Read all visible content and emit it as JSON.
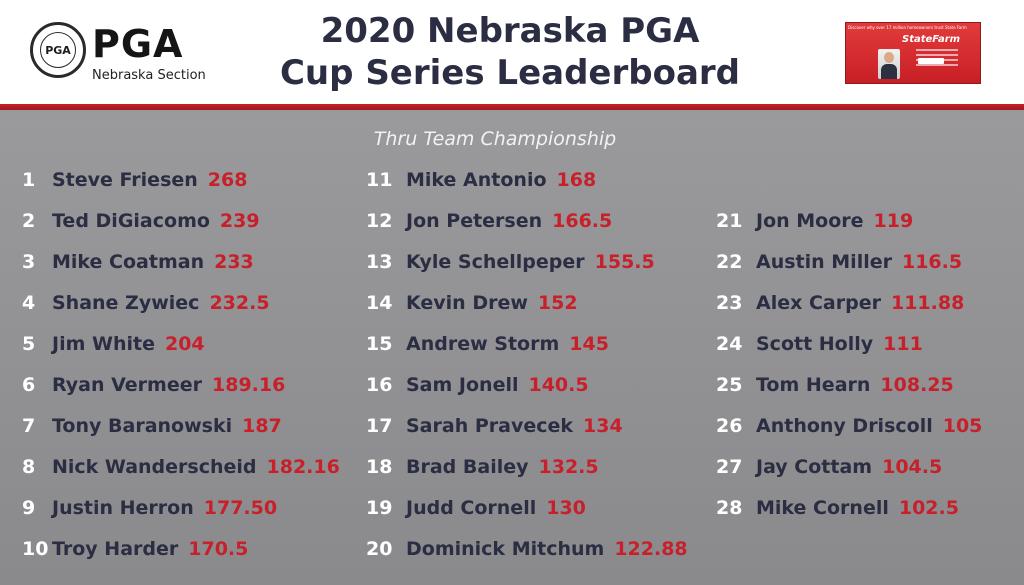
{
  "header": {
    "logo": {
      "seal_text": "PGA",
      "wordmark": "PGA",
      "section": "Nebraska Section"
    },
    "title_line1": "2020 Nebraska PGA",
    "title_line2": "Cup Series Leaderboard",
    "ad": {
      "tagline": "Discover why over 17 million homeowners trust State Farm",
      "brand": "StateFarm"
    }
  },
  "subtitle": "Thru Team Championship",
  "colors": {
    "rank": "#ffffff",
    "name": "#2b2d42",
    "points": "#c8202a",
    "accent_bar": "#c8202a"
  },
  "leaderboard": {
    "col1": [
      {
        "rank": "1",
        "name": "Steve Friesen",
        "points": "268"
      },
      {
        "rank": "2",
        "name": "Ted DiGiacomo",
        "points": "239"
      },
      {
        "rank": "3",
        "name": "Mike Coatman",
        "points": "233"
      },
      {
        "rank": "4",
        "name": "Shane Zywiec",
        "points": "232.5"
      },
      {
        "rank": "5",
        "name": "Jim White",
        "points": "204"
      },
      {
        "rank": "6",
        "name": "Ryan Vermeer",
        "points": "189.16"
      },
      {
        "rank": "7",
        "name": "Tony Baranowski",
        "points": "187"
      },
      {
        "rank": "8",
        "name": "Nick Wanderscheid",
        "points": "182.16"
      },
      {
        "rank": "9",
        "name": "Justin Herron",
        "points": "177.50"
      },
      {
        "rank": "10",
        "name": "Troy Harder",
        "points": "170.5"
      }
    ],
    "col2": [
      {
        "rank": "11",
        "name": "Mike Antonio",
        "points": "168"
      },
      {
        "rank": "12",
        "name": "Jon Petersen",
        "points": "166.5"
      },
      {
        "rank": "13",
        "name": "Kyle Schellpeper",
        "points": "155.5"
      },
      {
        "rank": "14",
        "name": "Kevin Drew",
        "points": "152"
      },
      {
        "rank": "15",
        "name": "Andrew Storm",
        "points": "145"
      },
      {
        "rank": "16",
        "name": "Sam Jonell",
        "points": "140.5"
      },
      {
        "rank": "17",
        "name": "Sarah Pravecek",
        "points": "134"
      },
      {
        "rank": "18",
        "name": "Brad Bailey",
        "points": "132.5"
      },
      {
        "rank": "19",
        "name": "Judd Cornell",
        "points": "130"
      },
      {
        "rank": "20",
        "name": "Dominick Mitchum",
        "points": "122.88"
      }
    ],
    "col3": [
      {
        "rank": "21",
        "name": "Jon Moore",
        "points": "119"
      },
      {
        "rank": "22",
        "name": "Austin Miller",
        "points": "116.5"
      },
      {
        "rank": "23",
        "name": "Alex Carper",
        "points": "111.88"
      },
      {
        "rank": "24",
        "name": "Scott Holly",
        "points": "111"
      },
      {
        "rank": "25",
        "name": "Tom Hearn",
        "points": "108.25"
      },
      {
        "rank": "26",
        "name": "Anthony Driscoll",
        "points": "105"
      },
      {
        "rank": "27",
        "name": "Jay Cottam",
        "points": "104.5"
      },
      {
        "rank": "28",
        "name": "Mike Cornell",
        "points": "102.5"
      }
    ]
  }
}
